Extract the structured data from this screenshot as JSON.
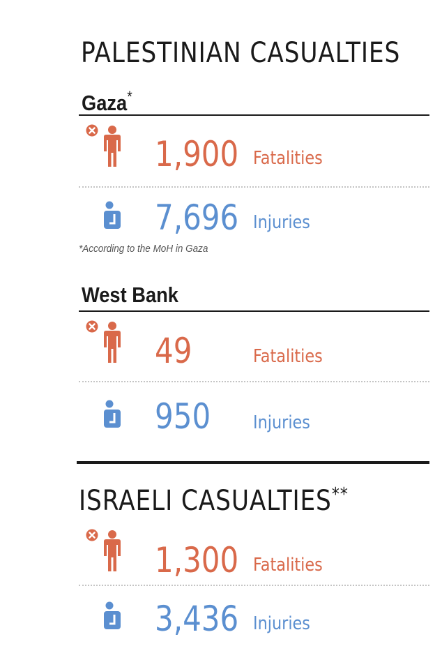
{
  "colors": {
    "fatality": "#d9694a",
    "injury": "#5b8fd0",
    "text": "#1a1a1a"
  },
  "palestinian": {
    "title": "PALESTINIAN CASUALTIES",
    "gaza": {
      "heading": "Gaza",
      "heading_mark": "*",
      "fatalities": {
        "value": "1,900",
        "label": "Fatalities",
        "icon": "person-with-x-icon"
      },
      "injuries": {
        "value": "7,696",
        "label": "Injuries",
        "icon": "injured-person-icon"
      },
      "footnote": "*According to the MoH in Gaza"
    },
    "west_bank": {
      "heading": "West Bank",
      "fatalities": {
        "value": "49",
        "label": "Fatalities",
        "icon": "person-with-x-icon"
      },
      "injuries": {
        "value": "950",
        "label": "Injuries",
        "icon": "injured-person-icon"
      }
    }
  },
  "israeli": {
    "title": "ISRAELI CASUALTIES",
    "title_mark": "**",
    "fatalities": {
      "value": "1,300",
      "label": "Fatalities",
      "icon": "person-with-x-icon"
    },
    "injuries": {
      "value": "3,436",
      "label": "Injuries",
      "icon": "injured-person-icon"
    }
  }
}
